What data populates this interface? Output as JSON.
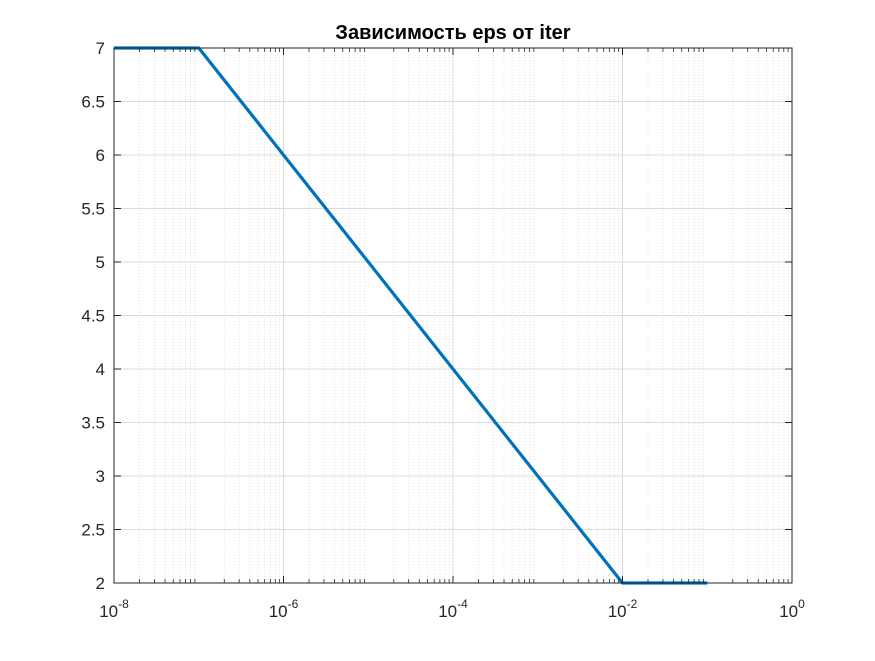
{
  "chart_data": {
    "type": "line",
    "title": "Зависимость eps от iter",
    "xlabel": "",
    "ylabel": "",
    "x_scale": "log",
    "xlim": [
      1e-08,
      1
    ],
    "ylim": [
      2,
      7
    ],
    "grid": true,
    "minor_grid": true,
    "x_ticks": [
      {
        "base": "10",
        "exp": "-8",
        "value": 1e-08
      },
      {
        "base": "10",
        "exp": "-6",
        "value": 1e-06
      },
      {
        "base": "10",
        "exp": "-4",
        "value": 0.0001
      },
      {
        "base": "10",
        "exp": "-2",
        "value": 0.01
      },
      {
        "base": "10",
        "exp": "0",
        "value": 1
      }
    ],
    "y_ticks": [
      "2",
      "2.5",
      "3",
      "3.5",
      "4",
      "4.5",
      "5",
      "5.5",
      "6",
      "6.5",
      "7"
    ],
    "series": [
      {
        "color": "#0072BD",
        "x": [
          1e-08,
          1e-07,
          1e-06,
          1e-05,
          0.0001,
          0.001,
          0.01,
          0.1
        ],
        "y": [
          7,
          7,
          6,
          5,
          4,
          3,
          2,
          2
        ]
      }
    ]
  }
}
